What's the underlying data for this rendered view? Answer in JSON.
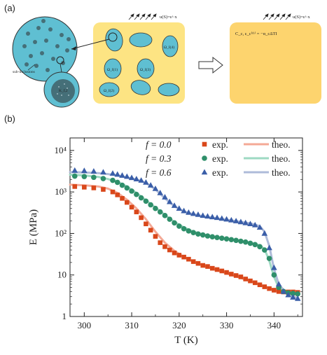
{
  "panel_a": {
    "label": "(a)",
    "strain_left": "u(S)=εᵃ·x",
    "strain_right": "u(S)=εᵃ·x",
    "sub_inclusions_label": "sub-inclusions",
    "inner_label": "K_f,2",
    "omega_labels": [
      "Ω_I(1)",
      "Ω_I(2)",
      "Ω_I(3)",
      "Ω_I(4)"
    ],
    "equation": "C_c, ε_c⁽ᵗʰ⁾ = −α_cΔTI"
  },
  "panel_b": {
    "label": "(b)"
  },
  "chart_data": {
    "type": "scatter",
    "xlabel": "T (K)",
    "ylabel": "E (MPa)",
    "xlim": [
      297,
      346
    ],
    "ylim": [
      1,
      20000
    ],
    "y_scale": "log",
    "x_ticks": [
      300,
      310,
      320,
      330,
      340
    ],
    "y_ticks": [
      {
        "value": 1,
        "label": "1"
      },
      {
        "value": 10,
        "label": "10"
      },
      {
        "value": 100,
        "label": "10²"
      },
      {
        "value": 1000,
        "label": "10³"
      },
      {
        "value": 10000,
        "label": "10⁴"
      }
    ],
    "legend_placement": "top-right",
    "series": [
      {
        "name": "f = 0.0",
        "exp_label": "exp.",
        "theo_label": "theo.",
        "marker": "square",
        "exp_color": "#d9471a",
        "theo_color": "#f4a996",
        "exp": [
          [
            298,
            1350
          ],
          [
            300,
            1300
          ],
          [
            302,
            1250
          ],
          [
            304,
            1150
          ],
          [
            306,
            1000
          ],
          [
            307,
            850
          ],
          [
            308,
            700
          ],
          [
            309,
            560
          ],
          [
            310,
            430
          ],
          [
            311,
            330
          ],
          [
            312,
            240
          ],
          [
            313,
            170
          ],
          [
            314,
            120
          ],
          [
            315,
            85
          ],
          [
            316,
            60
          ],
          [
            317,
            48
          ],
          [
            318,
            40
          ],
          [
            319,
            34
          ],
          [
            320,
            30
          ],
          [
            321,
            27
          ],
          [
            322,
            24
          ],
          [
            323,
            21
          ],
          [
            324,
            19
          ],
          [
            325,
            17
          ],
          [
            326,
            16
          ],
          [
            327,
            14.5
          ],
          [
            328,
            13.5
          ],
          [
            329,
            12.5
          ],
          [
            330,
            11.5
          ],
          [
            331,
            10.5
          ],
          [
            332,
            9.7
          ],
          [
            333,
            9
          ],
          [
            334,
            8
          ],
          [
            335,
            7.2
          ],
          [
            336,
            6.5
          ],
          [
            337,
            5.8
          ],
          [
            338,
            5.2
          ],
          [
            339,
            4.7
          ],
          [
            340,
            4.3
          ],
          [
            341,
            4
          ],
          [
            342,
            3.9
          ],
          [
            343,
            3.9
          ],
          [
            344,
            3.9
          ],
          [
            345,
            3.8
          ]
        ],
        "theo": [
          [
            297,
            1500
          ],
          [
            300,
            1450
          ],
          [
            303,
            1350
          ],
          [
            305,
            1200
          ],
          [
            307,
            950
          ],
          [
            309,
            650
          ],
          [
            311,
            400
          ],
          [
            313,
            220
          ],
          [
            315,
            110
          ],
          [
            317,
            60
          ],
          [
            319,
            38
          ],
          [
            321,
            27
          ],
          [
            323,
            21
          ],
          [
            325,
            17
          ],
          [
            327,
            14
          ],
          [
            329,
            12
          ],
          [
            331,
            10
          ],
          [
            333,
            8.5
          ],
          [
            335,
            7
          ],
          [
            337,
            5.8
          ],
          [
            339,
            4.8
          ],
          [
            341,
            4
          ],
          [
            343,
            3.5
          ],
          [
            345,
            3.3
          ]
        ]
      },
      {
        "name": "f = 0.3",
        "exp_label": "exp.",
        "theo_label": "theo.",
        "marker": "circle",
        "exp_color": "#2f8f6a",
        "theo_color": "#9ed9c3",
        "exp": [
          [
            298,
            2400
          ],
          [
            300,
            2350
          ],
          [
            302,
            2250
          ],
          [
            304,
            2100
          ],
          [
            306,
            1900
          ],
          [
            307,
            1700
          ],
          [
            308,
            1450
          ],
          [
            309,
            1250
          ],
          [
            310,
            1050
          ],
          [
            311,
            870
          ],
          [
            312,
            720
          ],
          [
            313,
            600
          ],
          [
            314,
            490
          ],
          [
            315,
            400
          ],
          [
            316,
            330
          ],
          [
            317,
            270
          ],
          [
            318,
            220
          ],
          [
            319,
            180
          ],
          [
            320,
            150
          ],
          [
            321,
            130
          ],
          [
            322,
            115
          ],
          [
            323,
            105
          ],
          [
            324,
            97
          ],
          [
            325,
            92
          ],
          [
            326,
            87
          ],
          [
            327,
            83
          ],
          [
            328,
            80
          ],
          [
            329,
            77
          ],
          [
            330,
            74
          ],
          [
            331,
            71
          ],
          [
            332,
            68
          ],
          [
            333,
            65
          ],
          [
            334,
            62
          ],
          [
            335,
            58
          ],
          [
            336,
            54
          ],
          [
            337,
            48
          ],
          [
            338,
            40
          ],
          [
            339,
            25
          ],
          [
            340,
            10
          ],
          [
            341,
            5
          ],
          [
            342,
            4
          ],
          [
            343,
            3.7
          ],
          [
            344,
            3.6
          ],
          [
            345,
            3.5
          ]
        ],
        "theo": [
          [
            297,
            2600
          ],
          [
            300,
            2500
          ],
          [
            303,
            2300
          ],
          [
            305,
            2050
          ],
          [
            307,
            1750
          ],
          [
            309,
            1350
          ],
          [
            311,
            950
          ],
          [
            313,
            630
          ],
          [
            315,
            420
          ],
          [
            317,
            280
          ],
          [
            319,
            190
          ],
          [
            321,
            140
          ],
          [
            323,
            110
          ],
          [
            325,
            95
          ],
          [
            327,
            85
          ],
          [
            329,
            78
          ],
          [
            331,
            72
          ],
          [
            333,
            66
          ],
          [
            335,
            60
          ],
          [
            337,
            52
          ],
          [
            338,
            42
          ],
          [
            339,
            22
          ],
          [
            340,
            9
          ],
          [
            341,
            5
          ],
          [
            343,
            3.8
          ],
          [
            345,
            3.5
          ]
        ]
      },
      {
        "name": "f = 0.6",
        "exp_label": "exp.",
        "theo_label": "theo.",
        "marker": "triangle",
        "exp_color": "#3a5ea8",
        "theo_color": "#aebbd9",
        "exp": [
          [
            298,
            3300
          ],
          [
            300,
            3250
          ],
          [
            302,
            3150
          ],
          [
            304,
            3000
          ],
          [
            306,
            2800
          ],
          [
            307,
            2650
          ],
          [
            308,
            2500
          ],
          [
            309,
            2350
          ],
          [
            310,
            2200
          ],
          [
            311,
            2050
          ],
          [
            312,
            1900
          ],
          [
            313,
            1700
          ],
          [
            314,
            1450
          ],
          [
            315,
            1200
          ],
          [
            316,
            950
          ],
          [
            317,
            750
          ],
          [
            318,
            580
          ],
          [
            319,
            470
          ],
          [
            320,
            400
          ],
          [
            321,
            350
          ],
          [
            322,
            320
          ],
          [
            323,
            300
          ],
          [
            324,
            285
          ],
          [
            325,
            270
          ],
          [
            326,
            260
          ],
          [
            327,
            250
          ],
          [
            328,
            240
          ],
          [
            329,
            230
          ],
          [
            330,
            220
          ],
          [
            331,
            210
          ],
          [
            332,
            200
          ],
          [
            333,
            190
          ],
          [
            334,
            180
          ],
          [
            335,
            170
          ],
          [
            336,
            160
          ],
          [
            337,
            140
          ],
          [
            338,
            100
          ],
          [
            339,
            45
          ],
          [
            340,
            15
          ],
          [
            341,
            6
          ],
          [
            342,
            4
          ],
          [
            343,
            3.3
          ],
          [
            344,
            2.9
          ],
          [
            345,
            2.7
          ]
        ],
        "theo": [
          [
            297,
            3000
          ],
          [
            300,
            2950
          ],
          [
            303,
            2850
          ],
          [
            305,
            2700
          ],
          [
            307,
            2500
          ],
          [
            309,
            2250
          ],
          [
            311,
            2000
          ],
          [
            313,
            1650
          ],
          [
            315,
            1150
          ],
          [
            317,
            700
          ],
          [
            319,
            450
          ],
          [
            321,
            340
          ],
          [
            323,
            290
          ],
          [
            325,
            260
          ],
          [
            327,
            240
          ],
          [
            329,
            222
          ],
          [
            331,
            205
          ],
          [
            333,
            190
          ],
          [
            335,
            175
          ],
          [
            337,
            150
          ],
          [
            338,
            110
          ],
          [
            339,
            50
          ],
          [
            340,
            14
          ],
          [
            341,
            6
          ],
          [
            343,
            3.2
          ],
          [
            345,
            2.8
          ]
        ]
      }
    ]
  }
}
